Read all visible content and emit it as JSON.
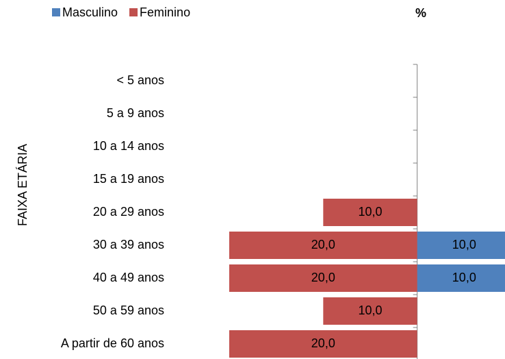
{
  "chart_data": {
    "type": "bar",
    "orientation": "horizontal",
    "xlabel": "%",
    "ylabel": "FAIXA ETÁRIA",
    "categories": [
      "< 5 anos",
      "5 a 9 anos",
      "10 a 14 anos",
      "15 a 19 anos",
      "20 a 29 anos",
      "30 a 39 anos",
      "40 a 49 anos",
      "50 a 59 anos",
      "A partir de 60 anos"
    ],
    "series": [
      {
        "name": "Masculino",
        "color": "#4f81bd",
        "side": "right",
        "values": [
          null,
          null,
          null,
          null,
          null,
          10,
          10,
          null,
          null
        ],
        "value_labels": [
          null,
          null,
          null,
          null,
          null,
          "10,0",
          "10,0",
          null,
          null
        ]
      },
      {
        "name": "Feminino",
        "color": "#c0504d",
        "side": "left",
        "values": [
          null,
          null,
          null,
          null,
          10,
          20,
          20,
          10,
          20
        ],
        "value_labels": [
          null,
          null,
          null,
          null,
          "10,0",
          "20,0",
          "20,0",
          "10,0",
          "20,0"
        ]
      }
    ],
    "xlim": [
      -20,
      10
    ],
    "legend": "top-left"
  }
}
